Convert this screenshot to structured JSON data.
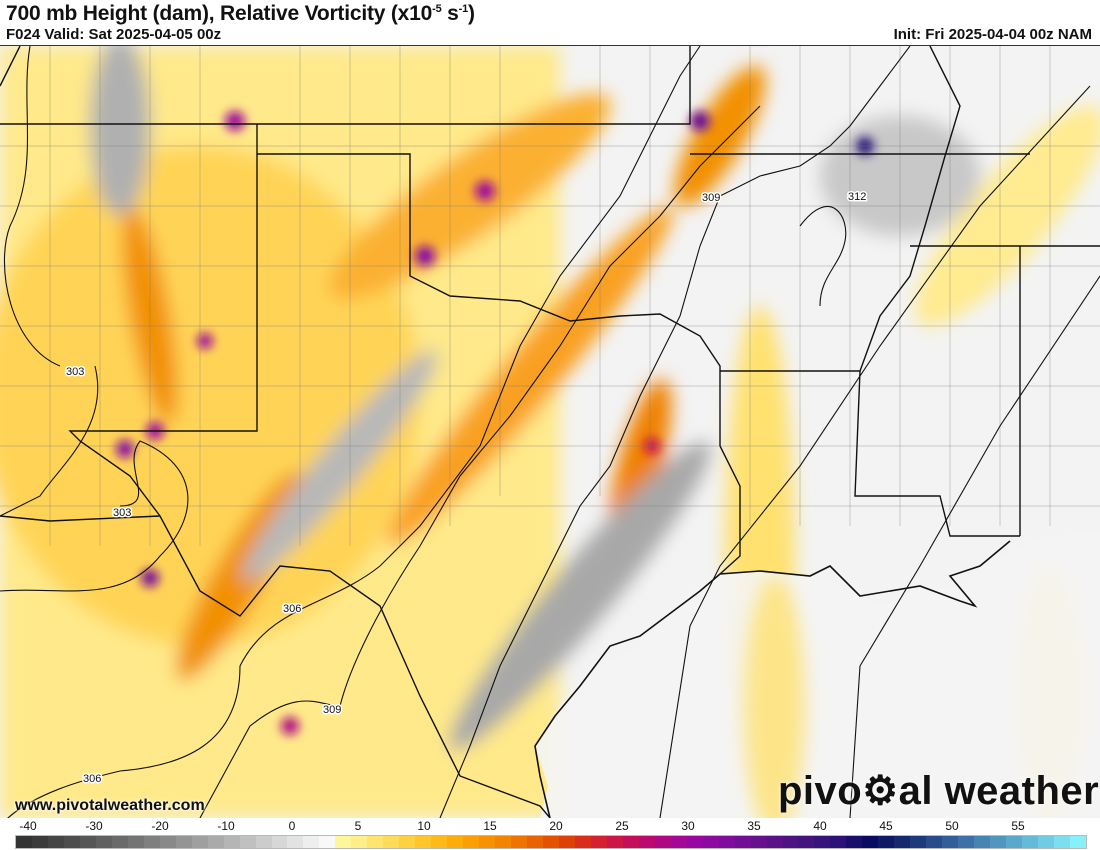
{
  "header": {
    "title": "700 mb Height (dam), Relative Vorticity (x10",
    "title_exp1": "-5",
    "title_mid": " s",
    "title_exp2": "-1",
    "title_end": ")",
    "valid": "F024 Valid: Sat 2025-04-05 00z",
    "init": "Init: Fri 2025-04-04 00z NAM"
  },
  "footer": {
    "url": "www.pivotalweather.com",
    "logo_left": "pivo",
    "logo_right": "al weather"
  },
  "map": {
    "contour_labels": [
      "303",
      "303",
      "306",
      "309",
      "306",
      "309",
      "312"
    ]
  },
  "colorbar": {
    "ticks": [
      "-40",
      "-30",
      "-20",
      "-10",
      "0",
      "5",
      "10",
      "15",
      "20",
      "25",
      "30",
      "35",
      "40",
      "45",
      "50",
      "55"
    ],
    "colors": [
      "#333333",
      "#3b3b3b",
      "#444444",
      "#4d4d4d",
      "#565656",
      "#606060",
      "#6a6a6a",
      "#747474",
      "#7f7f7f",
      "#898989",
      "#949494",
      "#9f9f9f",
      "#aaaaaa",
      "#b5b5b5",
      "#c0c0c0",
      "#cccccc",
      "#d7d7d7",
      "#e2e2e2",
      "#eeeeee",
      "#f8f8f8",
      "#fff59a",
      "#ffef8a",
      "#ffe570",
      "#ffdb5a",
      "#ffd040",
      "#ffc52a",
      "#ffb918",
      "#fdac08",
      "#fb9f02",
      "#f89100",
      "#f48300",
      "#ef7300",
      "#e96300",
      "#e35200",
      "#dd4008",
      "#d92f1a",
      "#d42030",
      "#cc1645",
      "#c40e5a",
      "#ba0a70",
      "#ae0885",
      "#a30896",
      "#9808a0",
      "#8c0aa0",
      "#800c9c",
      "#720e95",
      "#66108e",
      "#5a1188",
      "#4e1282",
      "#44137e",
      "#38137a",
      "#2c1278",
      "#1a0e6c",
      "#0a0a60",
      "#0e1a66",
      "#16286e",
      "#1e3a7c",
      "#284c8a",
      "#325e98",
      "#3c70a6",
      "#4684b4",
      "#5096c0",
      "#5aa8cc",
      "#64bad8",
      "#70cce2",
      "#7cdeee",
      "#88f0f8"
    ]
  }
}
